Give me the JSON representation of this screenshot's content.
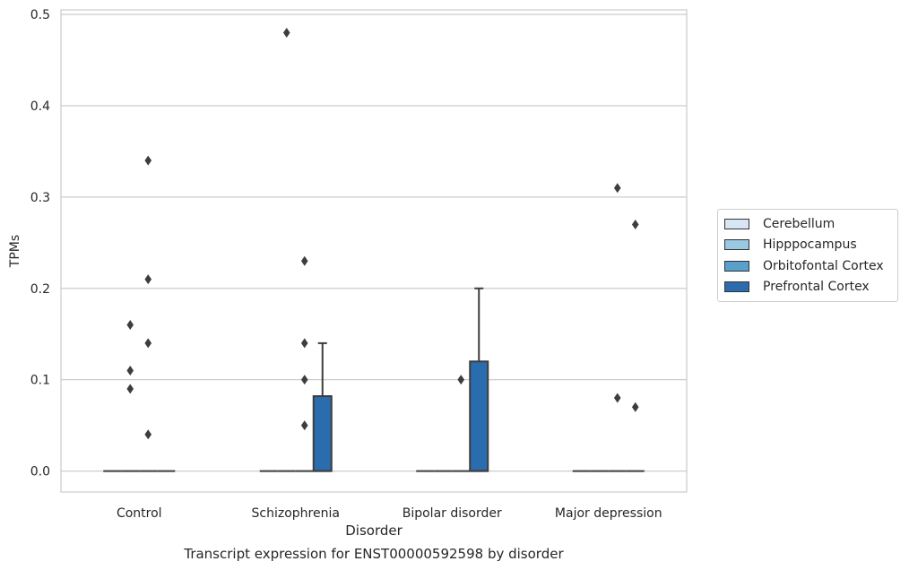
{
  "chart_data": {
    "type": "box",
    "title": "",
    "caption": "Transcript expression for ENST00000592598 by disorder",
    "xlabel": "Disorder",
    "ylabel": "TPMs",
    "ylim": [
      -0.023,
      0.505
    ],
    "yticks": [
      "0.0",
      "0.1",
      "0.2",
      "0.3",
      "0.4",
      "0.5"
    ],
    "ytick_values": [
      0.0,
      0.1,
      0.2,
      0.3,
      0.4,
      0.5
    ],
    "categories": [
      "Control",
      "Schizophrenia",
      "Bipolar disorder",
      "Major depression"
    ],
    "grid": true,
    "legend_position": "right",
    "series": [
      {
        "name": "Cerebellum",
        "color": "#d6e6f4",
        "boxes": [
          {
            "q1": 0,
            "median": 0,
            "q3": 0,
            "whisker_low": 0,
            "whisker_high": 0,
            "outliers": []
          },
          {
            "q1": 0,
            "median": 0,
            "q3": 0,
            "whisker_low": 0,
            "whisker_high": 0,
            "outliers": []
          },
          {
            "q1": 0,
            "median": 0,
            "q3": 0,
            "whisker_low": 0,
            "whisker_high": 0,
            "outliers": []
          },
          {
            "q1": 0,
            "median": 0,
            "q3": 0,
            "whisker_low": 0,
            "whisker_high": 0,
            "outliers": []
          }
        ]
      },
      {
        "name": "Hipppocampus",
        "color": "#9ac8e0",
        "boxes": [
          {
            "q1": 0,
            "median": 0,
            "q3": 0,
            "whisker_low": 0,
            "whisker_high": 0,
            "outliers": [
              0.16,
              0.11,
              0.09
            ]
          },
          {
            "q1": 0,
            "median": 0,
            "q3": 0,
            "whisker_low": 0,
            "whisker_high": 0,
            "outliers": [
              0.48
            ]
          },
          {
            "q1": 0,
            "median": 0,
            "q3": 0,
            "whisker_low": 0,
            "whisker_high": 0,
            "outliers": []
          },
          {
            "q1": 0,
            "median": 0,
            "q3": 0,
            "whisker_low": 0,
            "whisker_high": 0,
            "outliers": []
          }
        ]
      },
      {
        "name": "Orbitofontal Cortex",
        "color": "#5aa0cc",
        "boxes": [
          {
            "q1": 0,
            "median": 0,
            "q3": 0,
            "whisker_low": 0,
            "whisker_high": 0,
            "outliers": [
              0.34,
              0.21,
              0.14,
              0.04
            ]
          },
          {
            "q1": 0,
            "median": 0,
            "q3": 0,
            "whisker_low": 0,
            "whisker_high": 0,
            "outliers": [
              0.23,
              0.14,
              0.1,
              0.05
            ]
          },
          {
            "q1": 0,
            "median": 0,
            "q3": 0,
            "whisker_low": 0,
            "whisker_high": 0,
            "outliers": [
              0.1
            ]
          },
          {
            "q1": 0,
            "median": 0,
            "q3": 0,
            "whisker_low": 0,
            "whisker_high": 0,
            "outliers": [
              0.31,
              0.08
            ]
          }
        ]
      },
      {
        "name": "Prefrontal Cortex",
        "color": "#2a6cad",
        "boxes": [
          {
            "q1": 0,
            "median": 0,
            "q3": 0,
            "whisker_low": 0,
            "whisker_high": 0,
            "outliers": []
          },
          {
            "q1": 0,
            "median": 0,
            "q3": 0.082,
            "whisker_low": 0,
            "whisker_high": 0.14,
            "outliers": []
          },
          {
            "q1": 0,
            "median": 0,
            "q3": 0.12,
            "whisker_low": 0,
            "whisker_high": 0.2,
            "outliers": []
          },
          {
            "q1": 0,
            "median": 0,
            "q3": 0,
            "whisker_low": 0,
            "whisker_high": 0,
            "outliers": [
              0.27,
              0.07
            ]
          }
        ]
      }
    ]
  }
}
